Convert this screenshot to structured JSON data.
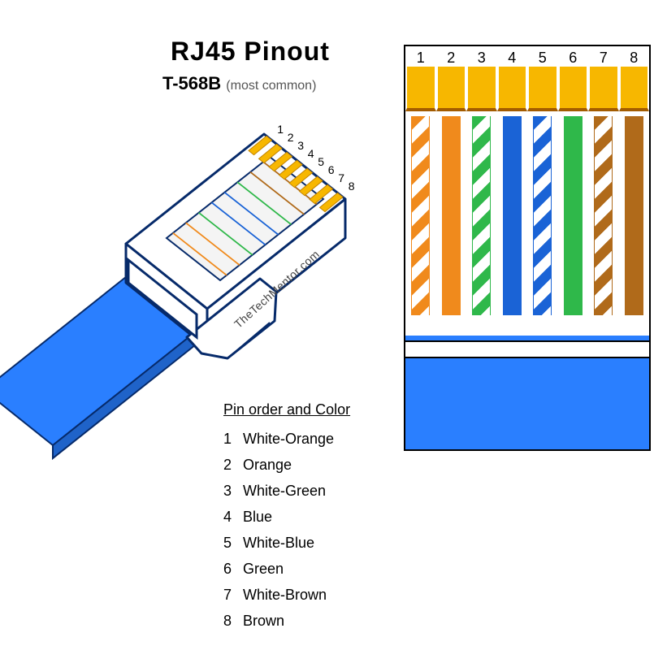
{
  "title": "RJ45  Pinout",
  "standard": "T-568B",
  "standard_note": "(most common)",
  "attribution": "TheTechMentor.com",
  "legend_title": "Pin order and Color",
  "colors": {
    "gold": "#f7b700",
    "gold_shadow": "#c28300",
    "cable_blue": "#2a7fff",
    "cable_blue_side": "#1f63c9",
    "connector_outline": "#062a6a",
    "connector_fill": "#ffffff"
  },
  "pins": [
    {
      "n": 1,
      "name": "White-Orange",
      "type": "striped",
      "base": "#ffffff",
      "stripe": "#f08a1c"
    },
    {
      "n": 2,
      "name": "Orange",
      "type": "solid",
      "base": "#f08a1c",
      "stripe": "#f08a1c"
    },
    {
      "n": 3,
      "name": "White-Green",
      "type": "striped",
      "base": "#ffffff",
      "stripe": "#2fb84a"
    },
    {
      "n": 4,
      "name": "Blue",
      "type": "solid",
      "base": "#1a63d6",
      "stripe": "#1a63d6"
    },
    {
      "n": 5,
      "name": "White-Blue",
      "type": "striped",
      "base": "#ffffff",
      "stripe": "#1a63d6"
    },
    {
      "n": 6,
      "name": "Green",
      "type": "solid",
      "base": "#2fb84a",
      "stripe": "#2fb84a"
    },
    {
      "n": 7,
      "name": "White-Brown",
      "type": "striped",
      "base": "#ffffff",
      "stripe": "#b06a1a"
    },
    {
      "n": 8,
      "name": "Brown",
      "type": "solid",
      "base": "#b06a1a",
      "stripe": "#b06a1a"
    }
  ],
  "flat_panel": {
    "border": "#000000",
    "number_fontsize": 18,
    "gold_height": 55,
    "wire_height": 245,
    "wire_width": 23,
    "jacket_height": 140,
    "band_height": 22
  },
  "iso_connector": {
    "pin_label_fontsize": 14,
    "cable_width": 118
  }
}
